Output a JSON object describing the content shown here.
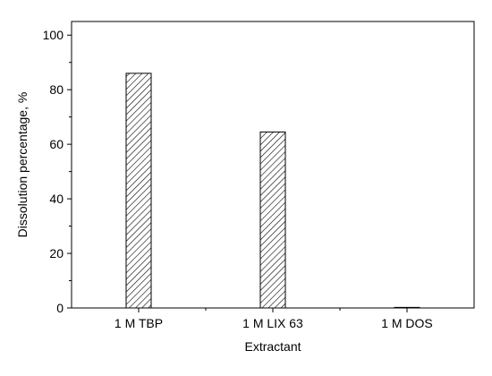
{
  "chart_data": {
    "type": "bar",
    "title": "",
    "xlabel": "Extractant",
    "ylabel": "Dissolution percentage, %",
    "categories": [
      "1 M TBP",
      "1 M LIX 63",
      "1 M DOS"
    ],
    "values": [
      86,
      64.5,
      0.2
    ],
    "ylim": [
      0,
      105
    ],
    "yticks": [
      0,
      20,
      40,
      60,
      80,
      100
    ],
    "grid": false,
    "legend": "none",
    "bar_pattern": "diagonal-hatch",
    "colors": {
      "bar_fill": "#ffffff",
      "bar_stroke": "#000000",
      "hatch": "#000000",
      "axis": "#000000"
    }
  }
}
